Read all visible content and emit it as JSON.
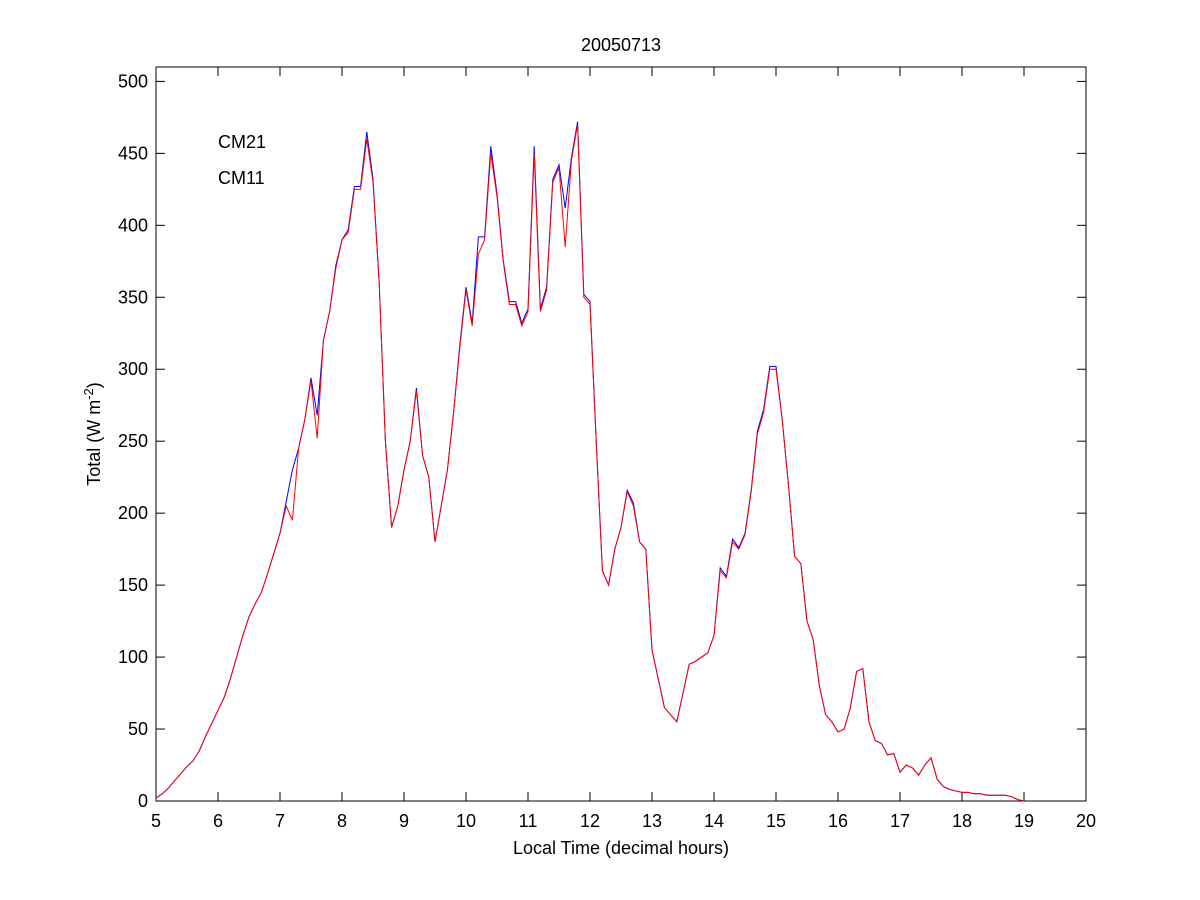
{
  "chart_data": {
    "type": "line",
    "title": "20050713",
    "x_label": "Local Time (decimal hours)",
    "y_label": {
      "text": "Total (W m",
      "sup": "-2",
      "end": ")"
    },
    "x": [
      5.0,
      5.1,
      5.2,
      5.3,
      5.4,
      5.5,
      5.6,
      5.7,
      5.8,
      5.9,
      6.0,
      6.1,
      6.2,
      6.3,
      6.4,
      6.5,
      6.6,
      6.7,
      6.8,
      6.9,
      7.0,
      7.1,
      7.2,
      7.3,
      7.4,
      7.5,
      7.6,
      7.7,
      7.8,
      7.9,
      8.0,
      8.1,
      8.2,
      8.3,
      8.4,
      8.5,
      8.6,
      8.7,
      8.8,
      8.9,
      9.0,
      9.1,
      9.2,
      9.3,
      9.4,
      9.5,
      9.6,
      9.7,
      9.8,
      9.9,
      10.0,
      10.1,
      10.2,
      10.3,
      10.4,
      10.5,
      10.6,
      10.7,
      10.8,
      10.9,
      11.0,
      11.1,
      11.2,
      11.3,
      11.4,
      11.5,
      11.6,
      11.7,
      11.8,
      11.9,
      12.0,
      12.1,
      12.2,
      12.3,
      12.4,
      12.5,
      12.6,
      12.7,
      12.8,
      12.9,
      13.0,
      13.1,
      13.2,
      13.3,
      13.4,
      13.5,
      13.6,
      13.7,
      13.8,
      13.9,
      14.0,
      14.1,
      14.2,
      14.3,
      14.4,
      14.5,
      14.6,
      14.7,
      14.8,
      14.9,
      15.0,
      15.1,
      15.2,
      15.3,
      15.4,
      15.5,
      15.6,
      15.7,
      15.8,
      15.9,
      16.0,
      16.1,
      16.2,
      16.3,
      16.4,
      16.5,
      16.6,
      16.7,
      16.8,
      16.9,
      17.0,
      17.1,
      17.2,
      17.3,
      17.4,
      17.5,
      17.6,
      17.7,
      17.8,
      17.9,
      18.0,
      18.1,
      18.2,
      18.3,
      18.4,
      18.5,
      18.6,
      18.7,
      18.8,
      18.9,
      19.0
    ],
    "series": [
      {
        "name": "CM21",
        "color": "#0000ff",
        "values": [
          2,
          5,
          9,
          14,
          19,
          24,
          28,
          35,
          45,
          54,
          63,
          72,
          85,
          100,
          115,
          128,
          137,
          145,
          158,
          172,
          186,
          208,
          230,
          245,
          265,
          294,
          268,
          320,
          340,
          372,
          390,
          397,
          427,
          427,
          465,
          432,
          360,
          250,
          190,
          205,
          230,
          250,
          287,
          240,
          225,
          180,
          205,
          230,
          270,
          317,
          357,
          332,
          392,
          392,
          455,
          422,
          376,
          347,
          347,
          332,
          342,
          455,
          342,
          357,
          432,
          442,
          412,
          447,
          472,
          352,
          347,
          250,
          160,
          150,
          175,
          190,
          216,
          207,
          180,
          175,
          105,
          85,
          65,
          60,
          55,
          75,
          95,
          97,
          100,
          103,
          115,
          162,
          156,
          182,
          176,
          186,
          216,
          257,
          272,
          302,
          302,
          265,
          220,
          170,
          165,
          125,
          112,
          80,
          60,
          55,
          48,
          50,
          65,
          90,
          92,
          55,
          42,
          40,
          32,
          33,
          20,
          25,
          23,
          18,
          25,
          30,
          15,
          10,
          8,
          7,
          6,
          6,
          5,
          5,
          4,
          4,
          4,
          4,
          3,
          1,
          0
        ]
      },
      {
        "name": "CM11",
        "color": "#ff0000",
        "values": [
          2,
          5,
          9,
          14,
          19,
          24,
          28,
          35,
          45,
          54,
          63,
          72,
          85,
          100,
          115,
          128,
          137,
          145,
          158,
          172,
          186,
          205,
          195,
          245,
          265,
          292,
          252,
          320,
          340,
          370,
          390,
          395,
          425,
          425,
          460,
          430,
          360,
          250,
          190,
          205,
          230,
          250,
          285,
          240,
          225,
          180,
          205,
          230,
          270,
          315,
          355,
          330,
          380,
          390,
          450,
          420,
          375,
          345,
          345,
          330,
          340,
          450,
          340,
          355,
          430,
          440,
          385,
          445,
          470,
          350,
          345,
          250,
          160,
          150,
          175,
          190,
          215,
          205,
          180,
          175,
          105,
          85,
          65,
          60,
          55,
          75,
          95,
          97,
          100,
          103,
          115,
          160,
          155,
          180,
          175,
          185,
          215,
          255,
          270,
          300,
          300,
          265,
          220,
          170,
          165,
          125,
          112,
          80,
          60,
          55,
          48,
          50,
          65,
          90,
          92,
          55,
          42,
          40,
          32,
          33,
          20,
          25,
          23,
          18,
          25,
          30,
          15,
          10,
          8,
          7,
          6,
          6,
          5,
          5,
          4,
          4,
          4,
          4,
          3,
          1,
          0
        ]
      }
    ],
    "xlim": [
      5,
      20
    ],
    "xticks": [
      5,
      6,
      7,
      8,
      9,
      10,
      11,
      12,
      13,
      14,
      15,
      16,
      17,
      18,
      19,
      20
    ],
    "ylim": [
      0,
      510
    ],
    "yticks": [
      0,
      50,
      100,
      150,
      200,
      250,
      300,
      350,
      400,
      450,
      500
    ],
    "grid": false,
    "legend": "upper left"
  }
}
